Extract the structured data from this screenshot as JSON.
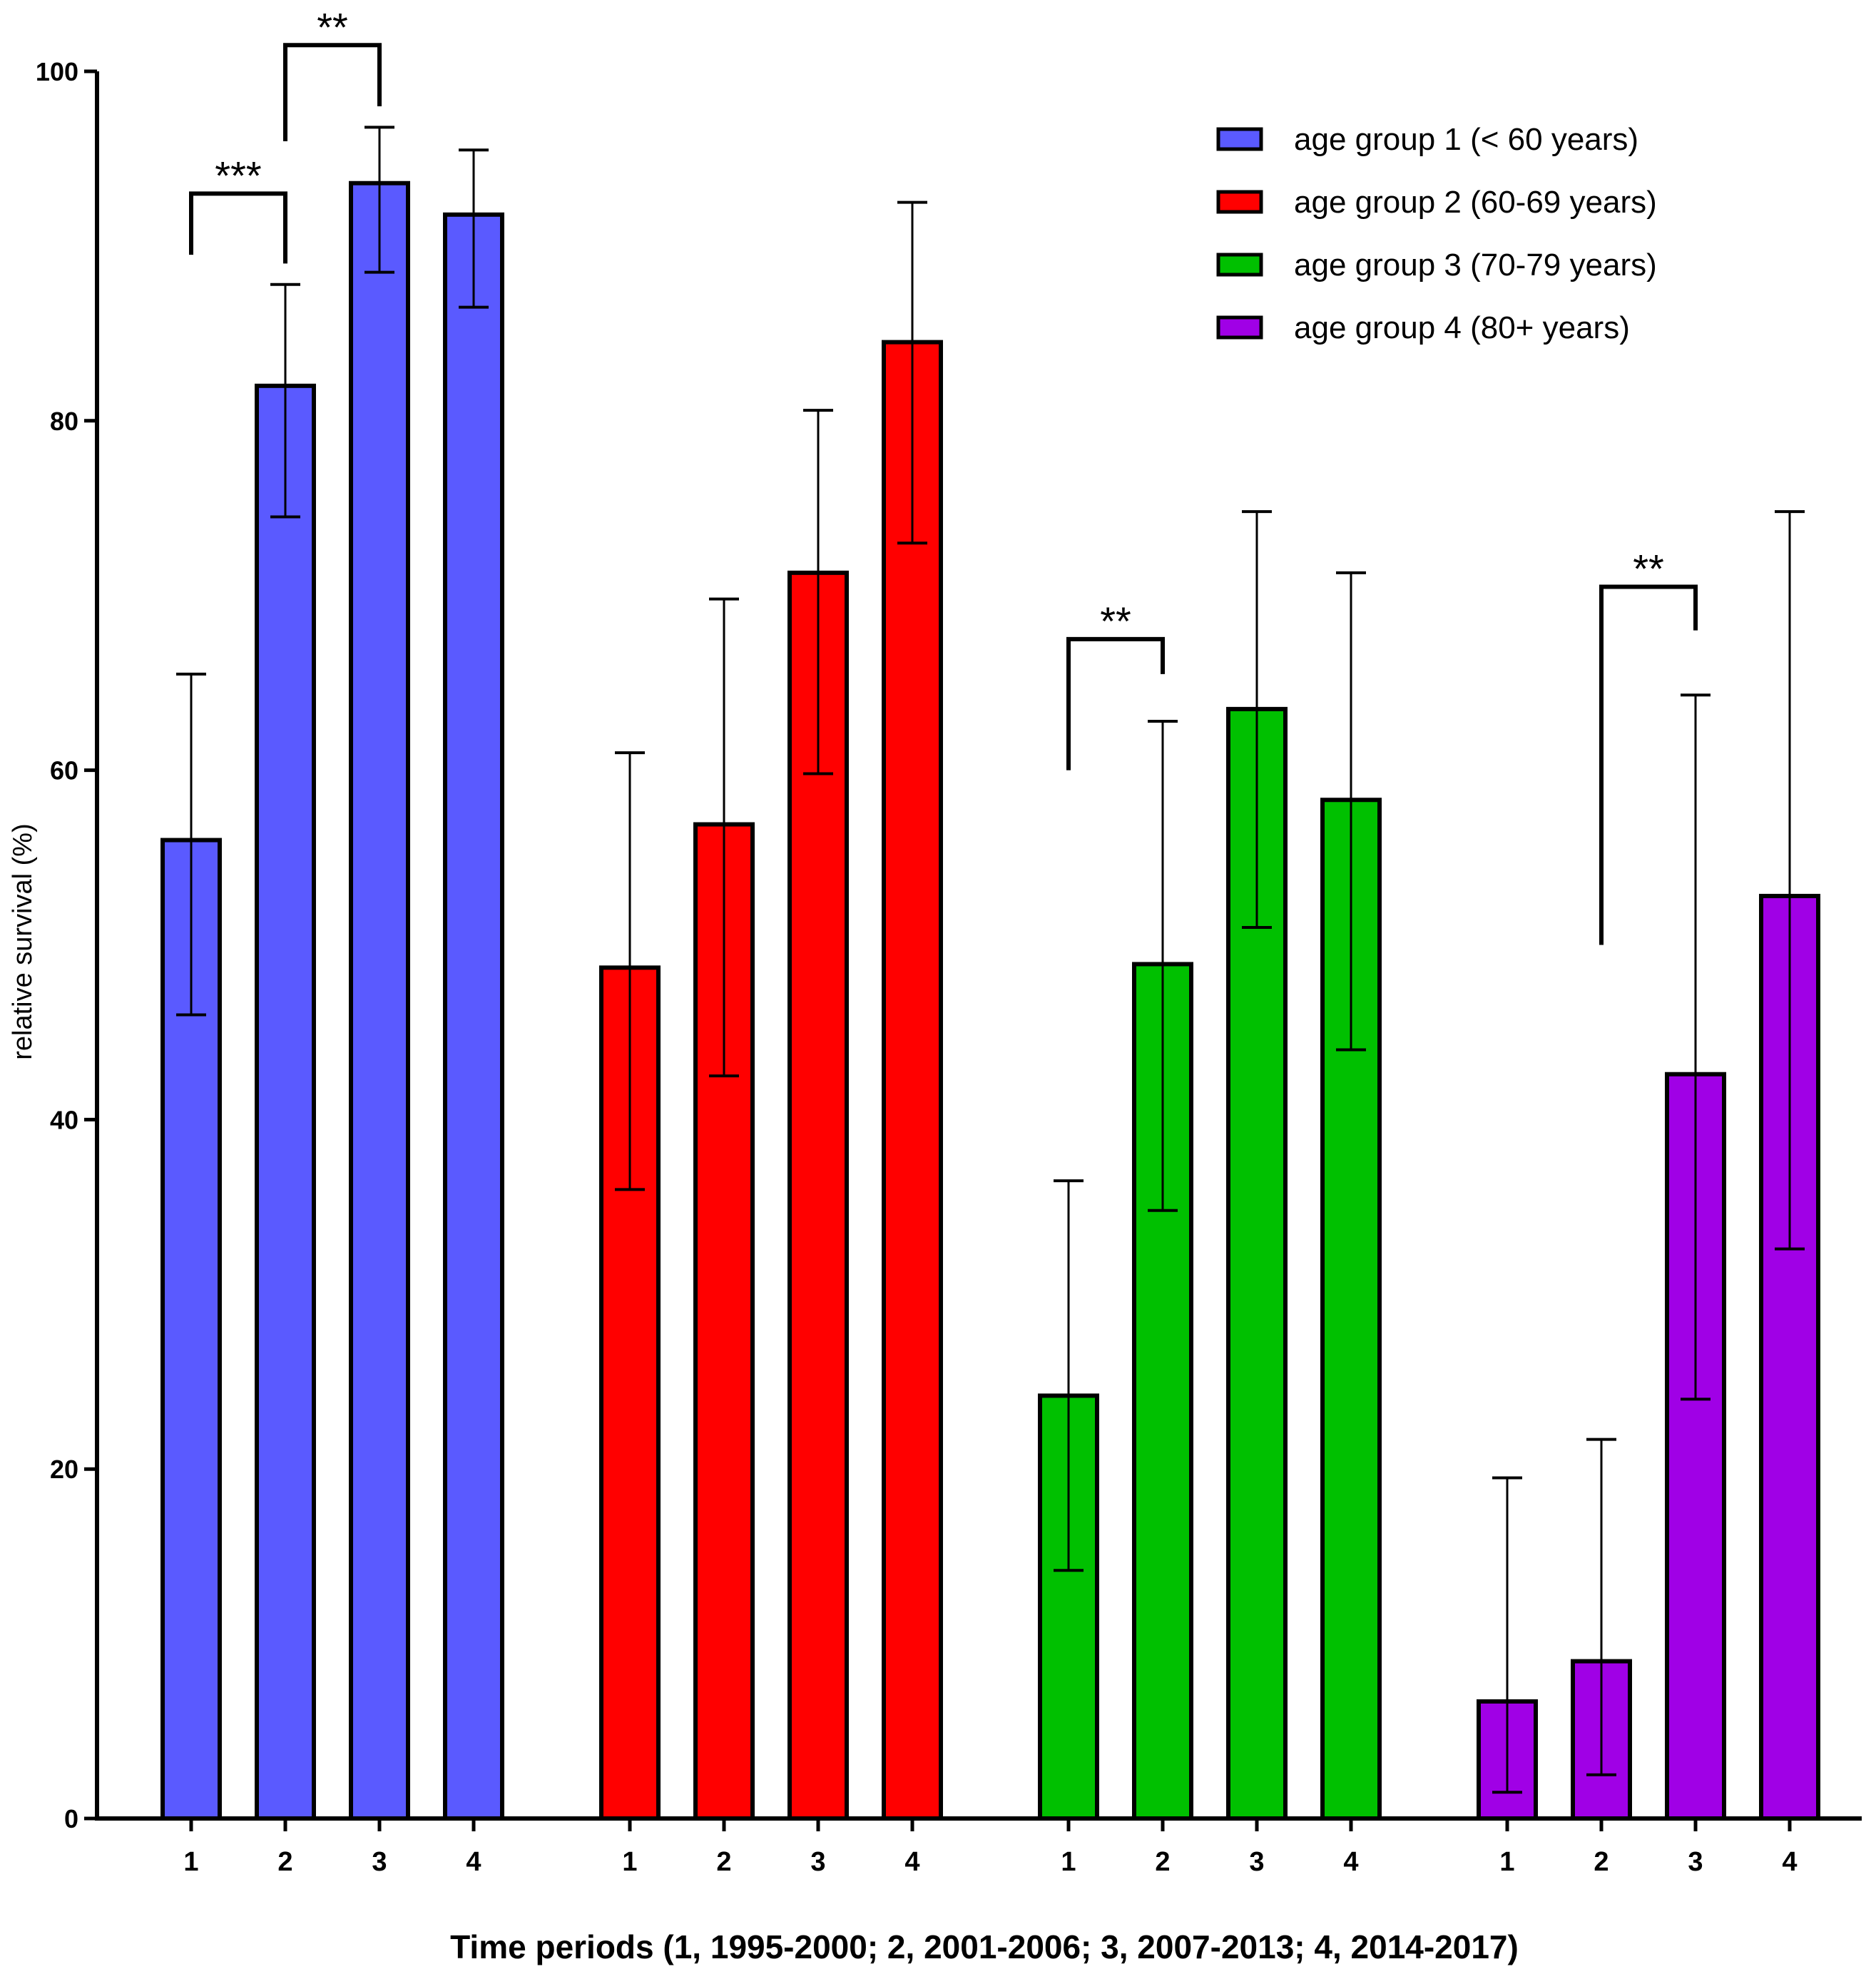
{
  "chart_data": {
    "type": "bar",
    "title": "",
    "xlabel": "Time periods (1, 1995-2000; 2, 2001-2006; 3, 2007-2013; 4, 2014-2017)",
    "ylabel": "relative survival (%)",
    "ylim": [
      0,
      100
    ],
    "yticks": [
      "0",
      "20",
      "40",
      "60",
      "80",
      "100"
    ],
    "grid": false,
    "legend_position": "top-right",
    "categories": [
      "1",
      "2",
      "3",
      "4"
    ],
    "series": [
      {
        "name": "age group 1 (< 60 years)",
        "color": "#5a5aff",
        "values": [
          56.0,
          82.0,
          93.6,
          91.8
        ],
        "error_low": [
          46.0,
          74.5,
          88.5,
          86.5
        ],
        "error_high": [
          65.5,
          87.8,
          96.8,
          95.5
        ]
      },
      {
        "name": "age group 2 (60-69 years)",
        "color": "#ff0000",
        "values": [
          48.7,
          56.9,
          71.3,
          84.5
        ],
        "error_low": [
          36.0,
          42.5,
          59.8,
          73.0
        ],
        "error_high": [
          61.0,
          69.8,
          80.6,
          92.5
        ]
      },
      {
        "name": "age group 3 (70-79 years)",
        "color": "#00c000",
        "values": [
          24.2,
          48.9,
          63.5,
          58.3
        ],
        "error_low": [
          14.2,
          34.8,
          51.0,
          44.0
        ],
        "error_high": [
          36.5,
          62.8,
          74.8,
          71.3
        ]
      },
      {
        "name": "age group 4 (80+ years)",
        "color": "#a000e6",
        "values": [
          6.7,
          9.0,
          42.6,
          52.8
        ],
        "error_low": [
          1.5,
          2.5,
          24.0,
          32.6
        ],
        "error_high": [
          19.5,
          21.7,
          64.3,
          74.8
        ]
      }
    ],
    "annotations": [
      {
        "label": "***",
        "series": 0,
        "from": 0,
        "to": 1,
        "bracket_y": 93.0,
        "left_end": 89.5,
        "right_end": 89.0
      },
      {
        "label": "**",
        "series": 0,
        "from": 1,
        "to": 2,
        "bracket_y": 101.5,
        "left_end": 96.0,
        "right_end": 98.0
      },
      {
        "label": "**",
        "series": 2,
        "from": 0,
        "to": 1,
        "bracket_y": 67.5,
        "left_end": 60.0,
        "right_end": 65.5
      },
      {
        "label": "**",
        "series": 3,
        "from": 1,
        "to": 2,
        "bracket_y": 70.5,
        "left_end": 50.0,
        "right_end": 68.0
      }
    ]
  }
}
